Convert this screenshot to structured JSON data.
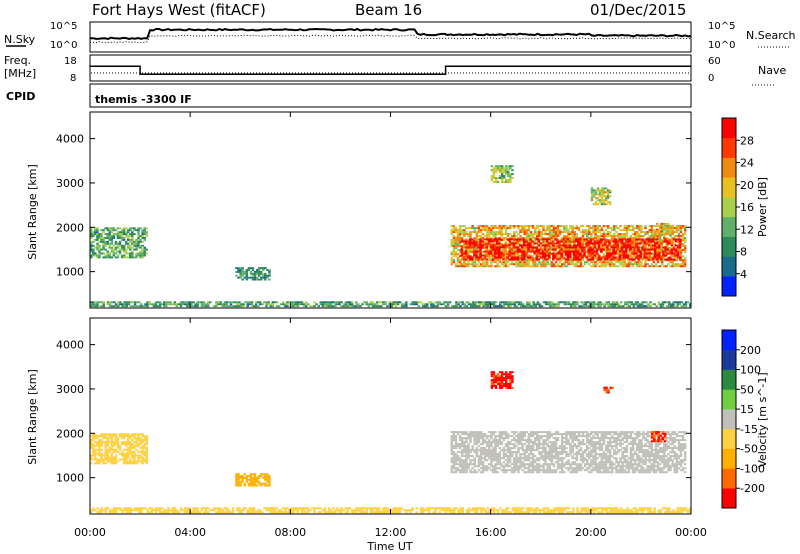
{
  "header": {
    "station": "Fort Hays West (fitACF)",
    "beam": "Beam 16",
    "date": "01/Dec/2015"
  },
  "strip1": {
    "left_label": "N.Sky",
    "right_label": "N.Search",
    "left_ticks": [
      "10^5",
      "10^0"
    ],
    "right_ticks": [
      "10^5",
      "10^0"
    ]
  },
  "strip2": {
    "left_label_line1": "Freq.",
    "left_label_line2": "[MHz]",
    "right_label": "Nave",
    "left_ticks": [
      "18",
      "8"
    ],
    "right_ticks": [
      "60",
      "0"
    ],
    "freq_steps": [
      {
        "t": 0,
        "f": 14
      },
      {
        "t": 2.0,
        "f": 10.5
      },
      {
        "t": 14.2,
        "f": 14
      }
    ]
  },
  "cpid": {
    "label": "CPID",
    "program": "themis -3300 IF"
  },
  "colors": {
    "power": [
      "#0022ff",
      "#1a6a8a",
      "#2d8a5a",
      "#5fb06a",
      "#a8d04a",
      "#e8c020",
      "#f08a10",
      "#ff3a00",
      "#ff0000"
    ],
    "velocity": [
      "#ff0000",
      "#ff6a00",
      "#ffb000",
      "#ffd040",
      "#c0c0b8",
      "#6ed040",
      "#2a8a40",
      "#1a3a9a",
      "#0022ff"
    ]
  },
  "time_axis": {
    "label": "Time UT",
    "ticks": [
      "00:00",
      "04:00",
      "08:00",
      "12:00",
      "16:00",
      "20:00",
      "00:00"
    ]
  },
  "chart_data": [
    {
      "type": "heatmap",
      "ylabel": "Slant Range [km]",
      "xlabel": "Time UT",
      "xlim": [
        0,
        24
      ],
      "ylim": [
        180,
        4600
      ],
      "yticks": [
        "1000",
        "2000",
        "3000",
        "4000"
      ],
      "colorbar": {
        "label": "Power [dB]",
        "ticks": [
          "4",
          "8",
          "12",
          "16",
          "20",
          "24",
          "28"
        ],
        "range": [
          0,
          30
        ]
      },
      "regions": [
        {
          "t0": 0.0,
          "t1": 2.3,
          "r0": 1300,
          "r1": 2000,
          "value": 11
        },
        {
          "t0": 5.8,
          "t1": 7.2,
          "r0": 800,
          "r1": 1100,
          "value": 9
        },
        {
          "t0": 14.4,
          "t1": 23.8,
          "r0": 1100,
          "r1": 2050,
          "value": 19
        },
        {
          "t0": 14.8,
          "t1": 23.6,
          "r0": 1250,
          "r1": 1750,
          "value": 28
        },
        {
          "t0": 16.0,
          "t1": 16.9,
          "r0": 3000,
          "r1": 3400,
          "value": 14
        },
        {
          "t0": 20.0,
          "t1": 20.8,
          "r0": 2500,
          "r1": 2900,
          "value": 15
        },
        {
          "t0": 22.6,
          "t1": 23.3,
          "r0": 1800,
          "r1": 2100,
          "value": 18
        },
        {
          "t0": 0.0,
          "t1": 24.0,
          "r0": 200,
          "r1": 330,
          "value": 10
        }
      ]
    },
    {
      "type": "heatmap",
      "ylabel": "Slant Range [km]",
      "xlabel": "Time UT",
      "xlim": [
        0,
        24
      ],
      "ylim": [
        180,
        4600
      ],
      "yticks": [
        "1000",
        "2000",
        "3000",
        "4000"
      ],
      "colorbar": {
        "label": "Velocity [m s^-1]",
        "ticks": [
          "-200",
          "-100",
          "-50",
          "-15",
          "15",
          "50",
          "100",
          "200"
        ],
        "range": [
          -250,
          250
        ]
      },
      "regions": [
        {
          "t0": 0.0,
          "t1": 2.3,
          "r0": 1300,
          "r1": 2000,
          "value": -30
        },
        {
          "t0": 5.8,
          "t1": 7.2,
          "r0": 800,
          "r1": 1100,
          "value": -80
        },
        {
          "t0": 14.4,
          "t1": 23.8,
          "r0": 1100,
          "r1": 2050,
          "value": 0
        },
        {
          "t0": 16.0,
          "t1": 16.9,
          "r0": 3000,
          "r1": 3400,
          "value": -220
        },
        {
          "t0": 20.5,
          "t1": 20.9,
          "r0": 2900,
          "r1": 3050,
          "value": -200
        },
        {
          "t0": 22.4,
          "t1": 23.0,
          "r0": 1800,
          "r1": 2050,
          "value": -210
        },
        {
          "t0": 0.0,
          "t1": 24.0,
          "r0": 200,
          "r1": 330,
          "value": -30
        }
      ]
    }
  ]
}
